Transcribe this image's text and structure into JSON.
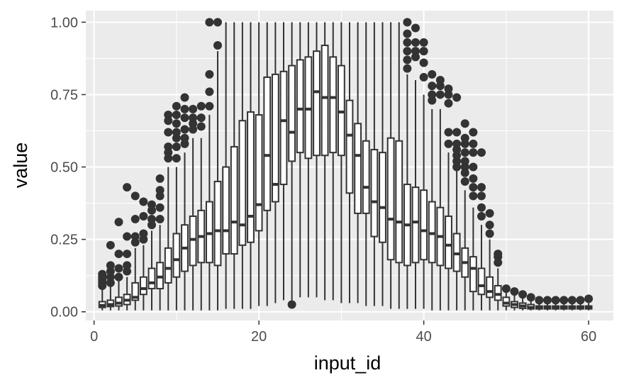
{
  "chart_data": {
    "type": "boxplot",
    "xlabel": "input_id",
    "ylabel": "value",
    "xlim": [
      -1,
      63
    ],
    "ylim": [
      -0.03,
      1.04
    ],
    "x_ticks": [
      0,
      20,
      40,
      60
    ],
    "x_tick_labels": [
      "0",
      "20",
      "40",
      "60"
    ],
    "y_ticks": [
      0,
      0.25,
      0.5,
      0.75,
      1.0
    ],
    "y_tick_labels": [
      "0.00",
      "0.25",
      "0.50",
      "0.75",
      "1.00"
    ],
    "grid": true,
    "legend": "none",
    "colors": {
      "panel": "#ebebeb",
      "grid_major": "#ffffff",
      "box_fill": "#ffffff",
      "box_line": "#333333",
      "outlier": "#333333"
    },
    "boxes": [
      {
        "x": 1,
        "min": 0.005,
        "q1": 0.015,
        "median": 0.022,
        "q3": 0.035,
        "max": 0.08,
        "outliers": [
          0.09,
          0.1,
          0.11,
          0.12,
          0.13
        ]
      },
      {
        "x": 2,
        "min": 0.005,
        "q1": 0.018,
        "median": 0.025,
        "q3": 0.04,
        "max": 0.09,
        "outliers": [
          0.1,
          0.12,
          0.14,
          0.16,
          0.23
        ]
      },
      {
        "x": 3,
        "min": 0.005,
        "q1": 0.02,
        "median": 0.03,
        "q3": 0.05,
        "max": 0.11,
        "outliers": [
          0.12,
          0.15,
          0.2,
          0.31
        ]
      },
      {
        "x": 4,
        "min": 0.005,
        "q1": 0.025,
        "median": 0.04,
        "q3": 0.06,
        "max": 0.12,
        "outliers": [
          0.14,
          0.16,
          0.2,
          0.26,
          0.43
        ]
      },
      {
        "x": 5,
        "min": 0.005,
        "q1": 0.04,
        "median": 0.05,
        "q3": 0.1,
        "max": 0.22,
        "outliers": [
          0.24,
          0.26,
          0.32,
          0.4
        ]
      },
      {
        "x": 6,
        "min": 0.005,
        "q1": 0.06,
        "median": 0.08,
        "q3": 0.12,
        "max": 0.23,
        "outliers": [
          0.25,
          0.27,
          0.33,
          0.38
        ]
      },
      {
        "x": 7,
        "min": 0.005,
        "q1": 0.08,
        "median": 0.1,
        "q3": 0.15,
        "max": 0.28,
        "outliers": [
          0.3,
          0.32,
          0.35,
          0.37
        ]
      },
      {
        "x": 8,
        "min": 0.005,
        "q1": 0.08,
        "median": 0.12,
        "q3": 0.17,
        "max": 0.3,
        "outliers": [
          0.32,
          0.36,
          0.4,
          0.42,
          0.46
        ]
      },
      {
        "x": 9,
        "min": 0.005,
        "q1": 0.1,
        "median": 0.15,
        "q3": 0.22,
        "max": 0.5,
        "outliers": [
          0.53,
          0.55,
          0.57,
          0.62,
          0.66,
          0.68
        ]
      },
      {
        "x": 10,
        "min": 0.005,
        "q1": 0.12,
        "median": 0.18,
        "q3": 0.27,
        "max": 0.5,
        "outliers": [
          0.53,
          0.57,
          0.6,
          0.62,
          0.65,
          0.68,
          0.71
        ]
      },
      {
        "x": 11,
        "min": 0.005,
        "q1": 0.14,
        "median": 0.22,
        "q3": 0.3,
        "max": 0.55,
        "outliers": [
          0.58,
          0.6,
          0.63,
          0.67,
          0.7,
          0.74
        ]
      },
      {
        "x": 12,
        "min": 0.005,
        "q1": 0.16,
        "median": 0.25,
        "q3": 0.33,
        "max": 0.6,
        "outliers": [
          0.63,
          0.65,
          0.67,
          0.7
        ]
      },
      {
        "x": 13,
        "min": 0.005,
        "q1": 0.17,
        "median": 0.26,
        "q3": 0.35,
        "max": 0.6,
        "outliers": [
          0.64,
          0.67,
          0.71
        ]
      },
      {
        "x": 14,
        "min": 0.005,
        "q1": 0.17,
        "median": 0.27,
        "q3": 0.38,
        "max": 0.68,
        "outliers": [
          0.71,
          0.76,
          0.82,
          1.0
        ]
      },
      {
        "x": 15,
        "min": 0.005,
        "q1": 0.16,
        "median": 0.28,
        "q3": 0.45,
        "max": 0.9,
        "outliers": [
          0.92,
          1.0
        ]
      },
      {
        "x": 16,
        "min": 0.01,
        "q1": 0.2,
        "median": 0.28,
        "q3": 0.5,
        "max": 1.0,
        "outliers": []
      },
      {
        "x": 17,
        "min": 0.01,
        "q1": 0.2,
        "median": 0.31,
        "q3": 0.57,
        "max": 1.0,
        "outliers": []
      },
      {
        "x": 18,
        "min": 0.01,
        "q1": 0.23,
        "median": 0.3,
        "q3": 0.66,
        "max": 1.0,
        "outliers": []
      },
      {
        "x": 19,
        "min": 0.01,
        "q1": 0.24,
        "median": 0.33,
        "q3": 0.69,
        "max": 1.0,
        "outliers": []
      },
      {
        "x": 20,
        "min": 0.02,
        "q1": 0.28,
        "median": 0.37,
        "q3": 0.68,
        "max": 1.0,
        "outliers": []
      },
      {
        "x": 21,
        "min": 0.02,
        "q1": 0.35,
        "median": 0.54,
        "q3": 0.81,
        "max": 1.0,
        "outliers": []
      },
      {
        "x": 22,
        "min": 0.03,
        "q1": 0.38,
        "median": 0.44,
        "q3": 0.82,
        "max": 1.0,
        "outliers": []
      },
      {
        "x": 23,
        "min": 0.04,
        "q1": 0.44,
        "median": 0.66,
        "q3": 0.83,
        "max": 1.0,
        "outliers": []
      },
      {
        "x": 24,
        "min": 0.04,
        "q1": 0.52,
        "median": 0.62,
        "q3": 0.85,
        "max": 1.0,
        "outliers": [
          0.025
        ]
      },
      {
        "x": 25,
        "min": 0.05,
        "q1": 0.55,
        "median": 0.7,
        "q3": 0.87,
        "max": 1.0,
        "outliers": []
      },
      {
        "x": 26,
        "min": 0.05,
        "q1": 0.53,
        "median": 0.7,
        "q3": 0.88,
        "max": 1.0,
        "outliers": []
      },
      {
        "x": 27,
        "min": 0.05,
        "q1": 0.54,
        "median": 0.76,
        "q3": 0.9,
        "max": 1.0,
        "outliers": []
      },
      {
        "x": 28,
        "min": 0.04,
        "q1": 0.54,
        "median": 0.74,
        "q3": 0.92,
        "max": 1.0,
        "outliers": []
      },
      {
        "x": 29,
        "min": 0.04,
        "q1": 0.55,
        "median": 0.74,
        "q3": 0.88,
        "max": 1.0,
        "outliers": []
      },
      {
        "x": 30,
        "min": 0.03,
        "q1": 0.54,
        "median": 0.69,
        "q3": 0.85,
        "max": 1.0,
        "outliers": []
      },
      {
        "x": 31,
        "min": 0.03,
        "q1": 0.41,
        "median": 0.61,
        "q3": 0.73,
        "max": 1.0,
        "outliers": []
      },
      {
        "x": 32,
        "min": 0.03,
        "q1": 0.34,
        "median": 0.54,
        "q3": 0.65,
        "max": 1.0,
        "outliers": []
      },
      {
        "x": 33,
        "min": 0.02,
        "q1": 0.34,
        "median": 0.43,
        "q3": 0.59,
        "max": 1.0,
        "outliers": []
      },
      {
        "x": 34,
        "min": 0.02,
        "q1": 0.26,
        "median": 0.38,
        "q3": 0.56,
        "max": 1.0,
        "outliers": []
      },
      {
        "x": 35,
        "min": 0.02,
        "q1": 0.24,
        "median": 0.36,
        "q3": 0.55,
        "max": 1.0,
        "outliers": []
      },
      {
        "x": 36,
        "min": 0.01,
        "q1": 0.18,
        "median": 0.32,
        "q3": 0.6,
        "max": 1.0,
        "outliers": []
      },
      {
        "x": 37,
        "min": 0.01,
        "q1": 0.17,
        "median": 0.31,
        "q3": 0.59,
        "max": 1.0,
        "outliers": []
      },
      {
        "x": 38,
        "min": 0.01,
        "q1": 0.16,
        "median": 0.3,
        "q3": 0.44,
        "max": 0.82,
        "outliers": [
          0.84,
          0.87,
          0.9,
          0.93,
          0.96,
          1.0
        ]
      },
      {
        "x": 39,
        "min": 0.01,
        "q1": 0.17,
        "median": 0.31,
        "q3": 0.43,
        "max": 0.8,
        "outliers": [
          0.88,
          0.9,
          0.93,
          0.98
        ]
      },
      {
        "x": 40,
        "min": 0.01,
        "q1": 0.18,
        "median": 0.28,
        "q3": 0.42,
        "max": 0.75,
        "outliers": [
          0.81,
          0.86,
          0.9,
          0.93
        ]
      },
      {
        "x": 41,
        "min": 0.005,
        "q1": 0.17,
        "median": 0.27,
        "q3": 0.38,
        "max": 0.7,
        "outliers": [
          0.73,
          0.75,
          0.78,
          0.82
        ]
      },
      {
        "x": 42,
        "min": 0.005,
        "q1": 0.16,
        "median": 0.26,
        "q3": 0.36,
        "max": 0.7,
        "outliers": [
          0.75,
          0.78,
          0.8
        ]
      },
      {
        "x": 43,
        "min": 0.005,
        "q1": 0.15,
        "median": 0.23,
        "q3": 0.33,
        "max": 0.55,
        "outliers": [
          0.58,
          0.62,
          0.72,
          0.75,
          0.77
        ]
      },
      {
        "x": 44,
        "min": 0.005,
        "q1": 0.14,
        "median": 0.2,
        "q3": 0.27,
        "max": 0.5,
        "outliers": [
          0.5,
          0.52,
          0.54,
          0.56,
          0.58,
          0.62,
          0.74
        ]
      },
      {
        "x": 45,
        "min": 0.005,
        "q1": 0.12,
        "median": 0.17,
        "q3": 0.22,
        "max": 0.42,
        "outliers": [
          0.45,
          0.48,
          0.5,
          0.52,
          0.55,
          0.58,
          0.6,
          0.65
        ]
      },
      {
        "x": 46,
        "min": 0.005,
        "q1": 0.07,
        "median": 0.15,
        "q3": 0.19,
        "max": 0.36,
        "outliers": [
          0.4,
          0.43,
          0.46,
          0.5,
          0.55,
          0.58,
          0.62
        ]
      },
      {
        "x": 47,
        "min": 0.005,
        "q1": 0.06,
        "median": 0.09,
        "q3": 0.15,
        "max": 0.3,
        "outliers": [
          0.33,
          0.36,
          0.4,
          0.43,
          0.55
        ]
      },
      {
        "x": 48,
        "min": 0.005,
        "q1": 0.05,
        "median": 0.07,
        "q3": 0.12,
        "max": 0.25,
        "outliers": [
          0.27,
          0.3,
          0.34
        ]
      },
      {
        "x": 49,
        "min": 0.005,
        "q1": 0.04,
        "median": 0.06,
        "q3": 0.09,
        "max": 0.15,
        "outliers": [
          0.17,
          0.19,
          0.2
        ]
      },
      {
        "x": 50,
        "min": 0.005,
        "q1": 0.02,
        "median": 0.03,
        "q3": 0.05,
        "max": 0.07,
        "outliers": [
          0.08
        ]
      },
      {
        "x": 51,
        "min": 0.005,
        "q1": 0.015,
        "median": 0.025,
        "q3": 0.035,
        "max": 0.06,
        "outliers": [
          0.07
        ]
      },
      {
        "x": 52,
        "min": 0.005,
        "q1": 0.012,
        "median": 0.02,
        "q3": 0.03,
        "max": 0.05,
        "outliers": [
          0.06
        ]
      },
      {
        "x": 53,
        "min": 0.005,
        "q1": 0.01,
        "median": 0.015,
        "q3": 0.025,
        "max": 0.04,
        "outliers": [
          0.05
        ]
      },
      {
        "x": 54,
        "min": 0.005,
        "q1": 0.01,
        "median": 0.015,
        "q3": 0.02,
        "max": 0.03,
        "outliers": [
          0.04
        ]
      },
      {
        "x": 55,
        "min": 0.005,
        "q1": 0.01,
        "median": 0.015,
        "q3": 0.02,
        "max": 0.03,
        "outliers": [
          0.04
        ]
      },
      {
        "x": 56,
        "min": 0.005,
        "q1": 0.01,
        "median": 0.015,
        "q3": 0.02,
        "max": 0.03,
        "outliers": [
          0.04
        ]
      },
      {
        "x": 57,
        "min": 0.005,
        "q1": 0.01,
        "median": 0.015,
        "q3": 0.02,
        "max": 0.03,
        "outliers": [
          0.04
        ]
      },
      {
        "x": 58,
        "min": 0.005,
        "q1": 0.01,
        "median": 0.015,
        "q3": 0.02,
        "max": 0.03,
        "outliers": [
          0.04
        ]
      },
      {
        "x": 59,
        "min": 0.005,
        "q1": 0.01,
        "median": 0.015,
        "q3": 0.02,
        "max": 0.03,
        "outliers": [
          0.04
        ]
      },
      {
        "x": 60,
        "min": 0.005,
        "q1": 0.01,
        "median": 0.015,
        "q3": 0.02,
        "max": 0.03,
        "outliers": [
          0.045
        ]
      }
    ]
  }
}
